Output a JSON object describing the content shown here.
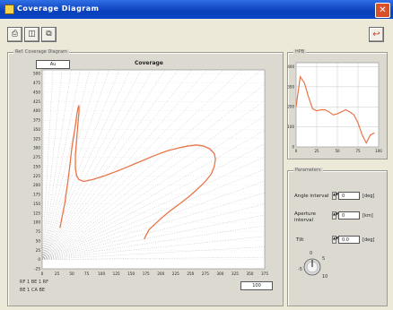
{
  "window": {
    "title": "Coverage Diagram",
    "close_glyph": "✕"
  },
  "toolbar": {
    "buttons": [
      {
        "name": "print-button",
        "glyph": "⎙"
      },
      {
        "name": "save-button",
        "glyph": "◫"
      },
      {
        "name": "copy-button",
        "glyph": "⧉"
      }
    ],
    "exit_glyph": "↩"
  },
  "main_panel": {
    "label": "Ref. Coverage Diagram",
    "plot_title": "Coverage",
    "mode_value": "Au",
    "legend": [
      "RF 1 BE 1 RF",
      "BE 1 CA BE"
    ],
    "zoom_value": "100"
  },
  "chart_data": [
    {
      "type": "line",
      "title": "Coverage",
      "x_ticks": [
        "0",
        "25",
        "50",
        "75",
        "100",
        "125",
        "150",
        "175",
        "200",
        "225",
        "250",
        "275",
        "300",
        "325",
        "350",
        "375"
      ],
      "y_ticks": [
        "500",
        "475",
        "450",
        "425",
        "400",
        "375",
        "350",
        "325",
        "300",
        "275",
        "250",
        "225",
        "200",
        "175",
        "150",
        "125",
        "100",
        "75",
        "50",
        "25",
        "0",
        "-25"
      ],
      "xlim": [
        0,
        375
      ],
      "ylim": [
        -25,
        510
      ],
      "grid": "rays",
      "series": [
        {
          "color": "#e8764a",
          "x": [
            30,
            38,
            45,
            50,
            55,
            58,
            60,
            62,
            62,
            60,
            58,
            56,
            56,
            58,
            62,
            70,
            85,
            105,
            130,
            160,
            190,
            210,
            230,
            245,
            260,
            272,
            282,
            290,
            292,
            290,
            285,
            275,
            262,
            248,
            232,
            215,
            200,
            190,
            180,
            175,
            172
          ],
          "y": [
            85,
            150,
            230,
            300,
            350,
            385,
            405,
            415,
            395,
            360,
            320,
            280,
            245,
            225,
            215,
            210,
            215,
            225,
            240,
            260,
            280,
            292,
            300,
            305,
            308,
            305,
            298,
            285,
            270,
            250,
            230,
            210,
            190,
            170,
            150,
            130,
            110,
            95,
            80,
            65,
            55
          ]
        }
      ]
    },
    {
      "type": "line",
      "title": "",
      "x_ticks": [
        "0",
        "25",
        "50",
        "75",
        "100"
      ],
      "y_ticks": [
        "400",
        "300",
        "200",
        "100",
        "0"
      ],
      "xlim": [
        0,
        100
      ],
      "ylim": [
        0,
        420
      ],
      "grid": true,
      "series": [
        {
          "color": "#e8764a",
          "x": [
            0,
            5,
            10,
            15,
            20,
            25,
            30,
            35,
            40,
            45,
            50,
            55,
            60,
            65,
            70,
            75,
            80,
            85,
            90,
            95
          ],
          "y": [
            200,
            350,
            320,
            250,
            190,
            180,
            185,
            185,
            175,
            160,
            165,
            175,
            185,
            175,
            160,
            120,
            60,
            20,
            60,
            70
          ]
        }
      ]
    }
  ],
  "right_top_panel": {
    "label": "HPB"
  },
  "parameters": {
    "label": "Parameters",
    "angle": {
      "label": "Angle interval",
      "value": "0",
      "unit": "[deg]"
    },
    "aperture": {
      "label": "Aperture interval",
      "value": "0",
      "unit": "[km]"
    },
    "tilt": {
      "label": "Tilt",
      "value": "0.0",
      "unit": "[deg]"
    },
    "knob_labels": [
      "-5",
      "0",
      "5",
      "10"
    ]
  }
}
